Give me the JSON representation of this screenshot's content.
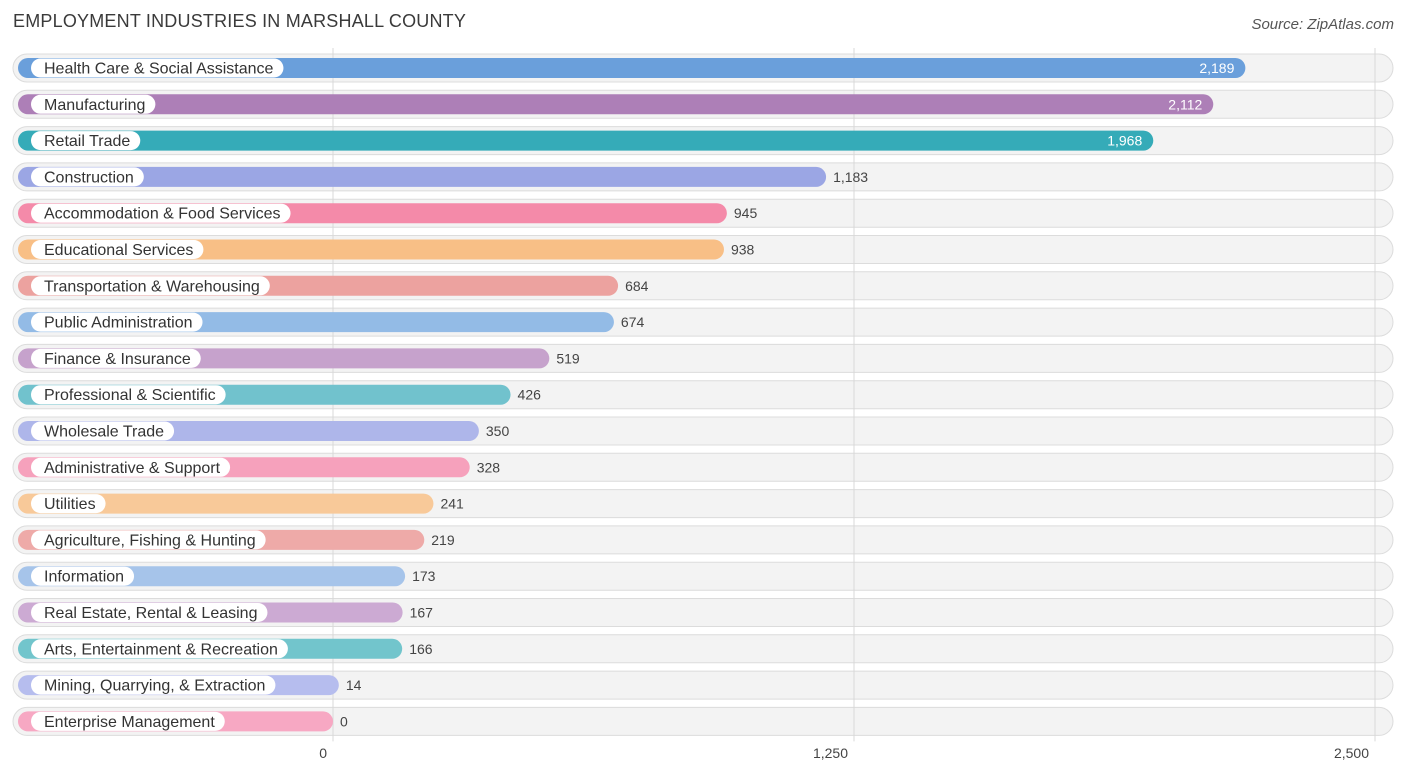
{
  "header": {
    "title": "EMPLOYMENT INDUSTRIES IN MARSHALL COUNTY",
    "source": "Source: ZipAtlas.com"
  },
  "chart_data": {
    "type": "bar",
    "orientation": "horizontal",
    "title": "EMPLOYMENT INDUSTRIES IN MARSHALL COUNTY",
    "xlabel": "",
    "ylabel": "",
    "xlim": [
      0,
      2500
    ],
    "ticks": [
      0,
      1250,
      2500
    ],
    "tick_labels": [
      "0",
      "1,250",
      "2,500"
    ],
    "categories": [
      "Health Care & Social Assistance",
      "Manufacturing",
      "Retail Trade",
      "Construction",
      "Accommodation & Food Services",
      "Educational Services",
      "Transportation & Warehousing",
      "Public Administration",
      "Finance & Insurance",
      "Professional & Scientific",
      "Wholesale Trade",
      "Administrative & Support",
      "Utilities",
      "Agriculture, Fishing & Hunting",
      "Information",
      "Real Estate, Rental & Leasing",
      "Arts, Entertainment & Recreation",
      "Mining, Quarrying, & Extraction",
      "Enterprise Management"
    ],
    "values": [
      2189,
      2112,
      1968,
      1183,
      945,
      938,
      684,
      674,
      519,
      426,
      350,
      328,
      241,
      219,
      173,
      167,
      166,
      14,
      0
    ],
    "value_labels": [
      "2,189",
      "2,112",
      "1,968",
      "1,183",
      "945",
      "938",
      "684",
      "674",
      "519",
      "426",
      "350",
      "328",
      "241",
      "219",
      "173",
      "167",
      "166",
      "14",
      "0"
    ],
    "colors": [
      "#6a9fdb",
      "#ad7fb7",
      "#35abb8",
      "#9ba6e4",
      "#f48aa9",
      "#f8bf86",
      "#eca29f",
      "#93bbe6",
      "#c6a2cc",
      "#71c2cd",
      "#aeb6ea",
      "#f6a1bc",
      "#f8c999",
      "#eeaaa8",
      "#a6c4ea",
      "#ccaad3",
      "#72c5cc",
      "#b6bdee",
      "#f7a8c3"
    ]
  }
}
